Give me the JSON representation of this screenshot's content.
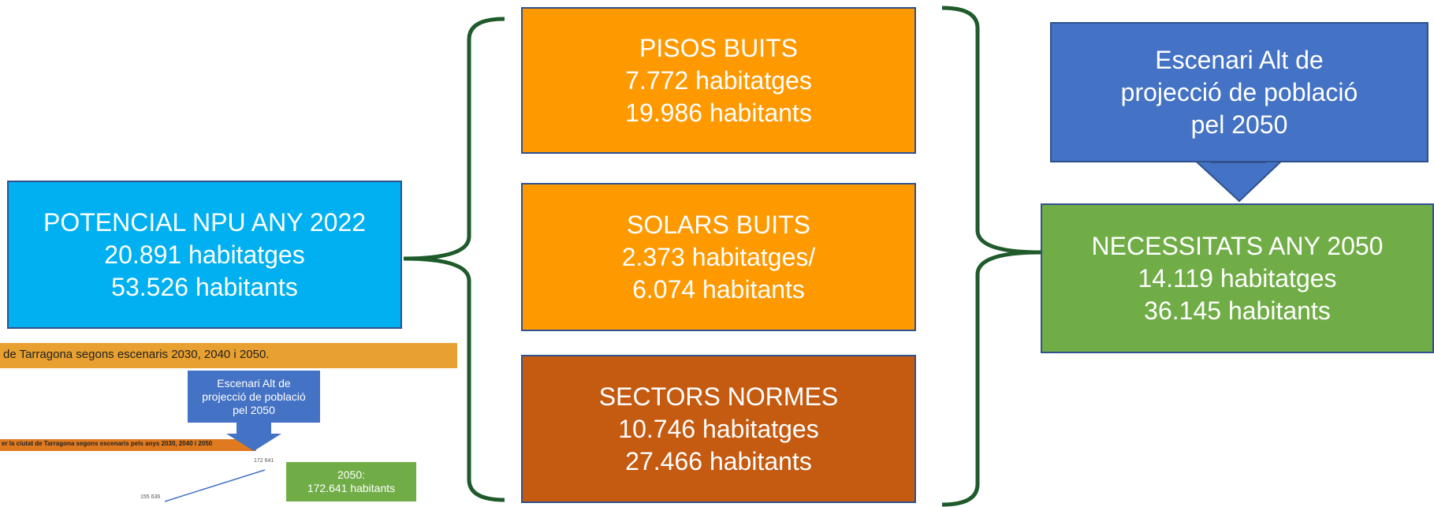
{
  "left_box": {
    "lines": [
      "POTENCIAL NPU ANY 2022",
      "20.891 habitatges",
      "53.526 habitants"
    ]
  },
  "boxes": [
    {
      "lines": [
        "PISOS BUITS",
        "7.772 habitatges",
        "19.986 habitants"
      ]
    },
    {
      "lines": [
        "SOLARS BUITS",
        "2.373 habitatges/",
        "6.074 habitants"
      ]
    },
    {
      "lines": [
        "SECTORS NORMES",
        "10.746 habitatges",
        "27.466 habitants"
      ]
    }
  ],
  "scenario_box": {
    "lines": [
      "Escenari Alt de",
      "projecció de població",
      "pel 2050"
    ]
  },
  "needs_box": {
    "lines": [
      "NECESSITATS ANY 2050",
      "14.119 habitatges",
      "36.145 habitants"
    ]
  },
  "inset": {
    "banner": "de Tarragona segons escenaris 2030, 2040 i 2050.",
    "subbanner": "er la ciutat de Tarragona segons escenaris pels anys 2030, 2040 i 2050",
    "scenario_lines": [
      "Escenari Alt de",
      "projecció de població",
      "pel 2050"
    ],
    "callout_lines": [
      "2050:",
      "172.641 habitants"
    ],
    "point_labels": [
      "172 641",
      "155 636"
    ]
  }
}
